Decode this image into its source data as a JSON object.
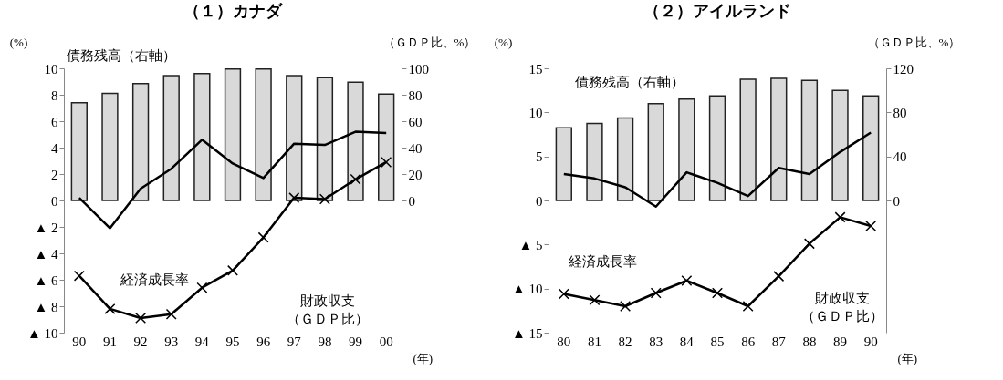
{
  "chart_data": [
    {
      "type": "bar",
      "title": "（１）カナダ",
      "ylabel": "(%)",
      "y2label": "（ＧＤＰ比、%）",
      "xlabel": "(年)",
      "categories": [
        "90",
        "91",
        "92",
        "93",
        "94",
        "95",
        "96",
        "97",
        "98",
        "99",
        "00"
      ],
      "ylim": [
        -10,
        10
      ],
      "yticks": [
        {
          "value": -10,
          "label": "▲ 10"
        },
        {
          "value": -8,
          "label": "▲ 8"
        },
        {
          "value": -6,
          "label": "▲ 6"
        },
        {
          "value": -4,
          "label": "▲ 4"
        },
        {
          "value": -2,
          "label": "▲ 2"
        },
        0,
        2,
        4,
        6,
        8,
        10
      ],
      "y2lim": [
        -100,
        100
      ],
      "y2ticks": [
        0,
        20,
        40,
        60,
        80,
        100
      ],
      "series": [
        {
          "axis": "y2",
          "color": "#d9d9d9",
          "values": [
            74,
            81,
            88.5,
            94.5,
            96,
            99.5,
            99.5,
            94.5,
            93,
            89.5,
            80.5
          ]
        },
        {
          "type": "line",
          "color": "#000000",
          "values": [
            0.2,
            -2.1,
            0.9,
            2.4,
            4.6,
            2.8,
            1.7,
            4.3,
            4.2,
            5.2,
            5.1
          ]
        },
        {
          "type": "line",
          "color": "#000000",
          "marker": "cross",
          "values": [
            -5.7,
            -8.2,
            -8.9,
            -8.6,
            -6.6,
            -5.3,
            -2.8,
            0.2,
            0.1,
            1.6,
            2.9
          ]
        }
      ],
      "annotations": [
        "債務残高（右軸）",
        "経済成長率",
        "財政収支（ＧＤＰ比）"
      ]
    },
    {
      "type": "bar",
      "title": "（２）アイルランド",
      "ylabel": "(%)",
      "y2label": "（ＧＤＰ比、%）",
      "xlabel": "(年)",
      "categories": [
        "80",
        "81",
        "82",
        "83",
        "84",
        "85",
        "86",
        "87",
        "88",
        "89",
        "90"
      ],
      "ylim": [
        -15,
        15
      ],
      "yticks": [
        {
          "value": -15,
          "label": "▲ 15"
        },
        {
          "value": -10,
          "label": "▲ 10"
        },
        {
          "value": -5,
          "label": "▲ 5"
        },
        0,
        5,
        10,
        15
      ],
      "y2lim": [
        -120,
        120
      ],
      "y2ticks": [
        0,
        40,
        80,
        120
      ],
      "series": [
        {
          "axis": "y2",
          "color": "#d9d9d9",
          "values": [
            66,
            70,
            75,
            88,
            92,
            95,
            110,
            111,
            109,
            100,
            95
          ]
        },
        {
          "type": "line",
          "color": "#000000",
          "values": [
            3.0,
            2.5,
            1.5,
            -0.7,
            3.2,
            2.0,
            0.5,
            3.7,
            3.0,
            5.5,
            7.7
          ]
        },
        {
          "type": "line",
          "color": "#000000",
          "marker": "cross",
          "values": [
            -10.6,
            -11.3,
            -12.0,
            -10.5,
            -9.1,
            -10.5,
            -12.0,
            -8.6,
            -4.9,
            -1.9,
            -2.9
          ]
        }
      ],
      "annotations": [
        "債務残高（右軸）",
        "経済成長率",
        "財政収支（ＧＤＰ比）"
      ]
    }
  ]
}
